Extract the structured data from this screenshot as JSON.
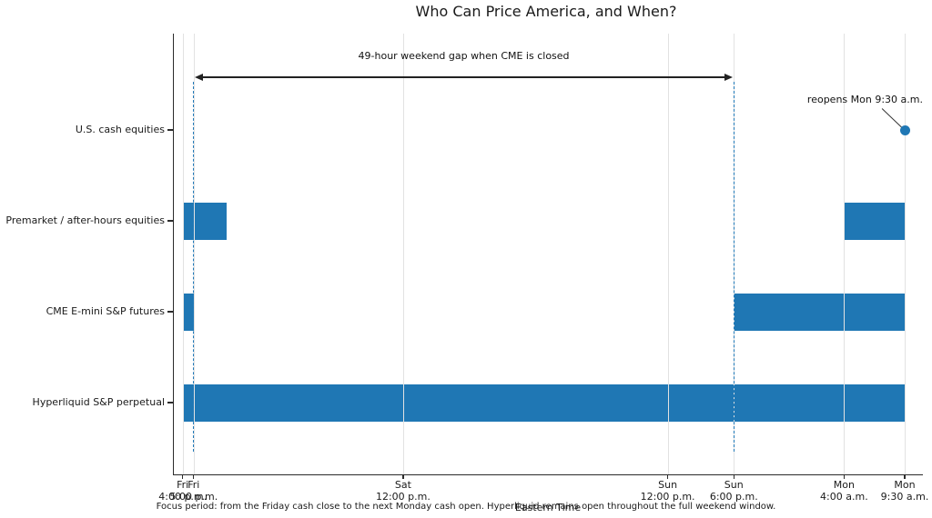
{
  "chart_data": {
    "type": "bar",
    "variant": "horizontal-interval timeline (broken_barh / Gantt)",
    "title": "Who Can Price America, and When?",
    "xlabel": "Eastern Time",
    "caption": "Focus period: from the Friday cash close to the next Monday cash open. Hyperliquid remains open throughout the full weekend window.",
    "x_unit": "hours since Fri 4:00 p.m. Eastern Time",
    "xlim": [
      0,
      65.5
    ],
    "grid": true,
    "legend": "none",
    "x_ticks": [
      {
        "hour": 0,
        "day": "Fri",
        "time": "4:00 p.m."
      },
      {
        "hour": 1,
        "day": "Fri",
        "time": "5:00 p.m."
      },
      {
        "hour": 20,
        "day": "Sat",
        "time": "12:00 p.m."
      },
      {
        "hour": 44,
        "day": "Sun",
        "time": "12:00 p.m."
      },
      {
        "hour": 50,
        "day": "Sun",
        "time": "6:00 p.m."
      },
      {
        "hour": 60,
        "day": "Mon",
        "time": "4:00 a.m."
      },
      {
        "hour": 65.5,
        "day": "Mon",
        "time": "9:30 a.m."
      }
    ],
    "rows": [
      {
        "label": "U.S. cash equities",
        "intervals": []
      },
      {
        "label": "Premarket / after-hours equities",
        "intervals": [
          [
            0,
            4
          ],
          [
            60,
            65.5
          ]
        ]
      },
      {
        "label": "CME E-mini S&P futures",
        "intervals": [
          [
            0,
            1
          ],
          [
            50,
            65.5
          ]
        ]
      },
      {
        "label": "Hyperliquid S&P perpetual",
        "intervals": [
          [
            0,
            65.5
          ]
        ]
      }
    ],
    "marker": {
      "row": 0,
      "hour": 65.5,
      "label": "reopens Mon 9:30 a.m."
    },
    "gap_annotation": {
      "label": "49-hour weekend gap when CME is closed",
      "from_hour": 1,
      "to_hour": 50
    },
    "dashed_guides_hours": [
      1,
      50
    ],
    "colors": {
      "bar": "#1f77b4",
      "marker": "#1f77b4",
      "dashed_guide": "#2079b8",
      "grid": "#e2e2e2",
      "spine": "#2b2b2b",
      "text": "#1a1a1a",
      "annotation_arrow": "#222222"
    }
  }
}
